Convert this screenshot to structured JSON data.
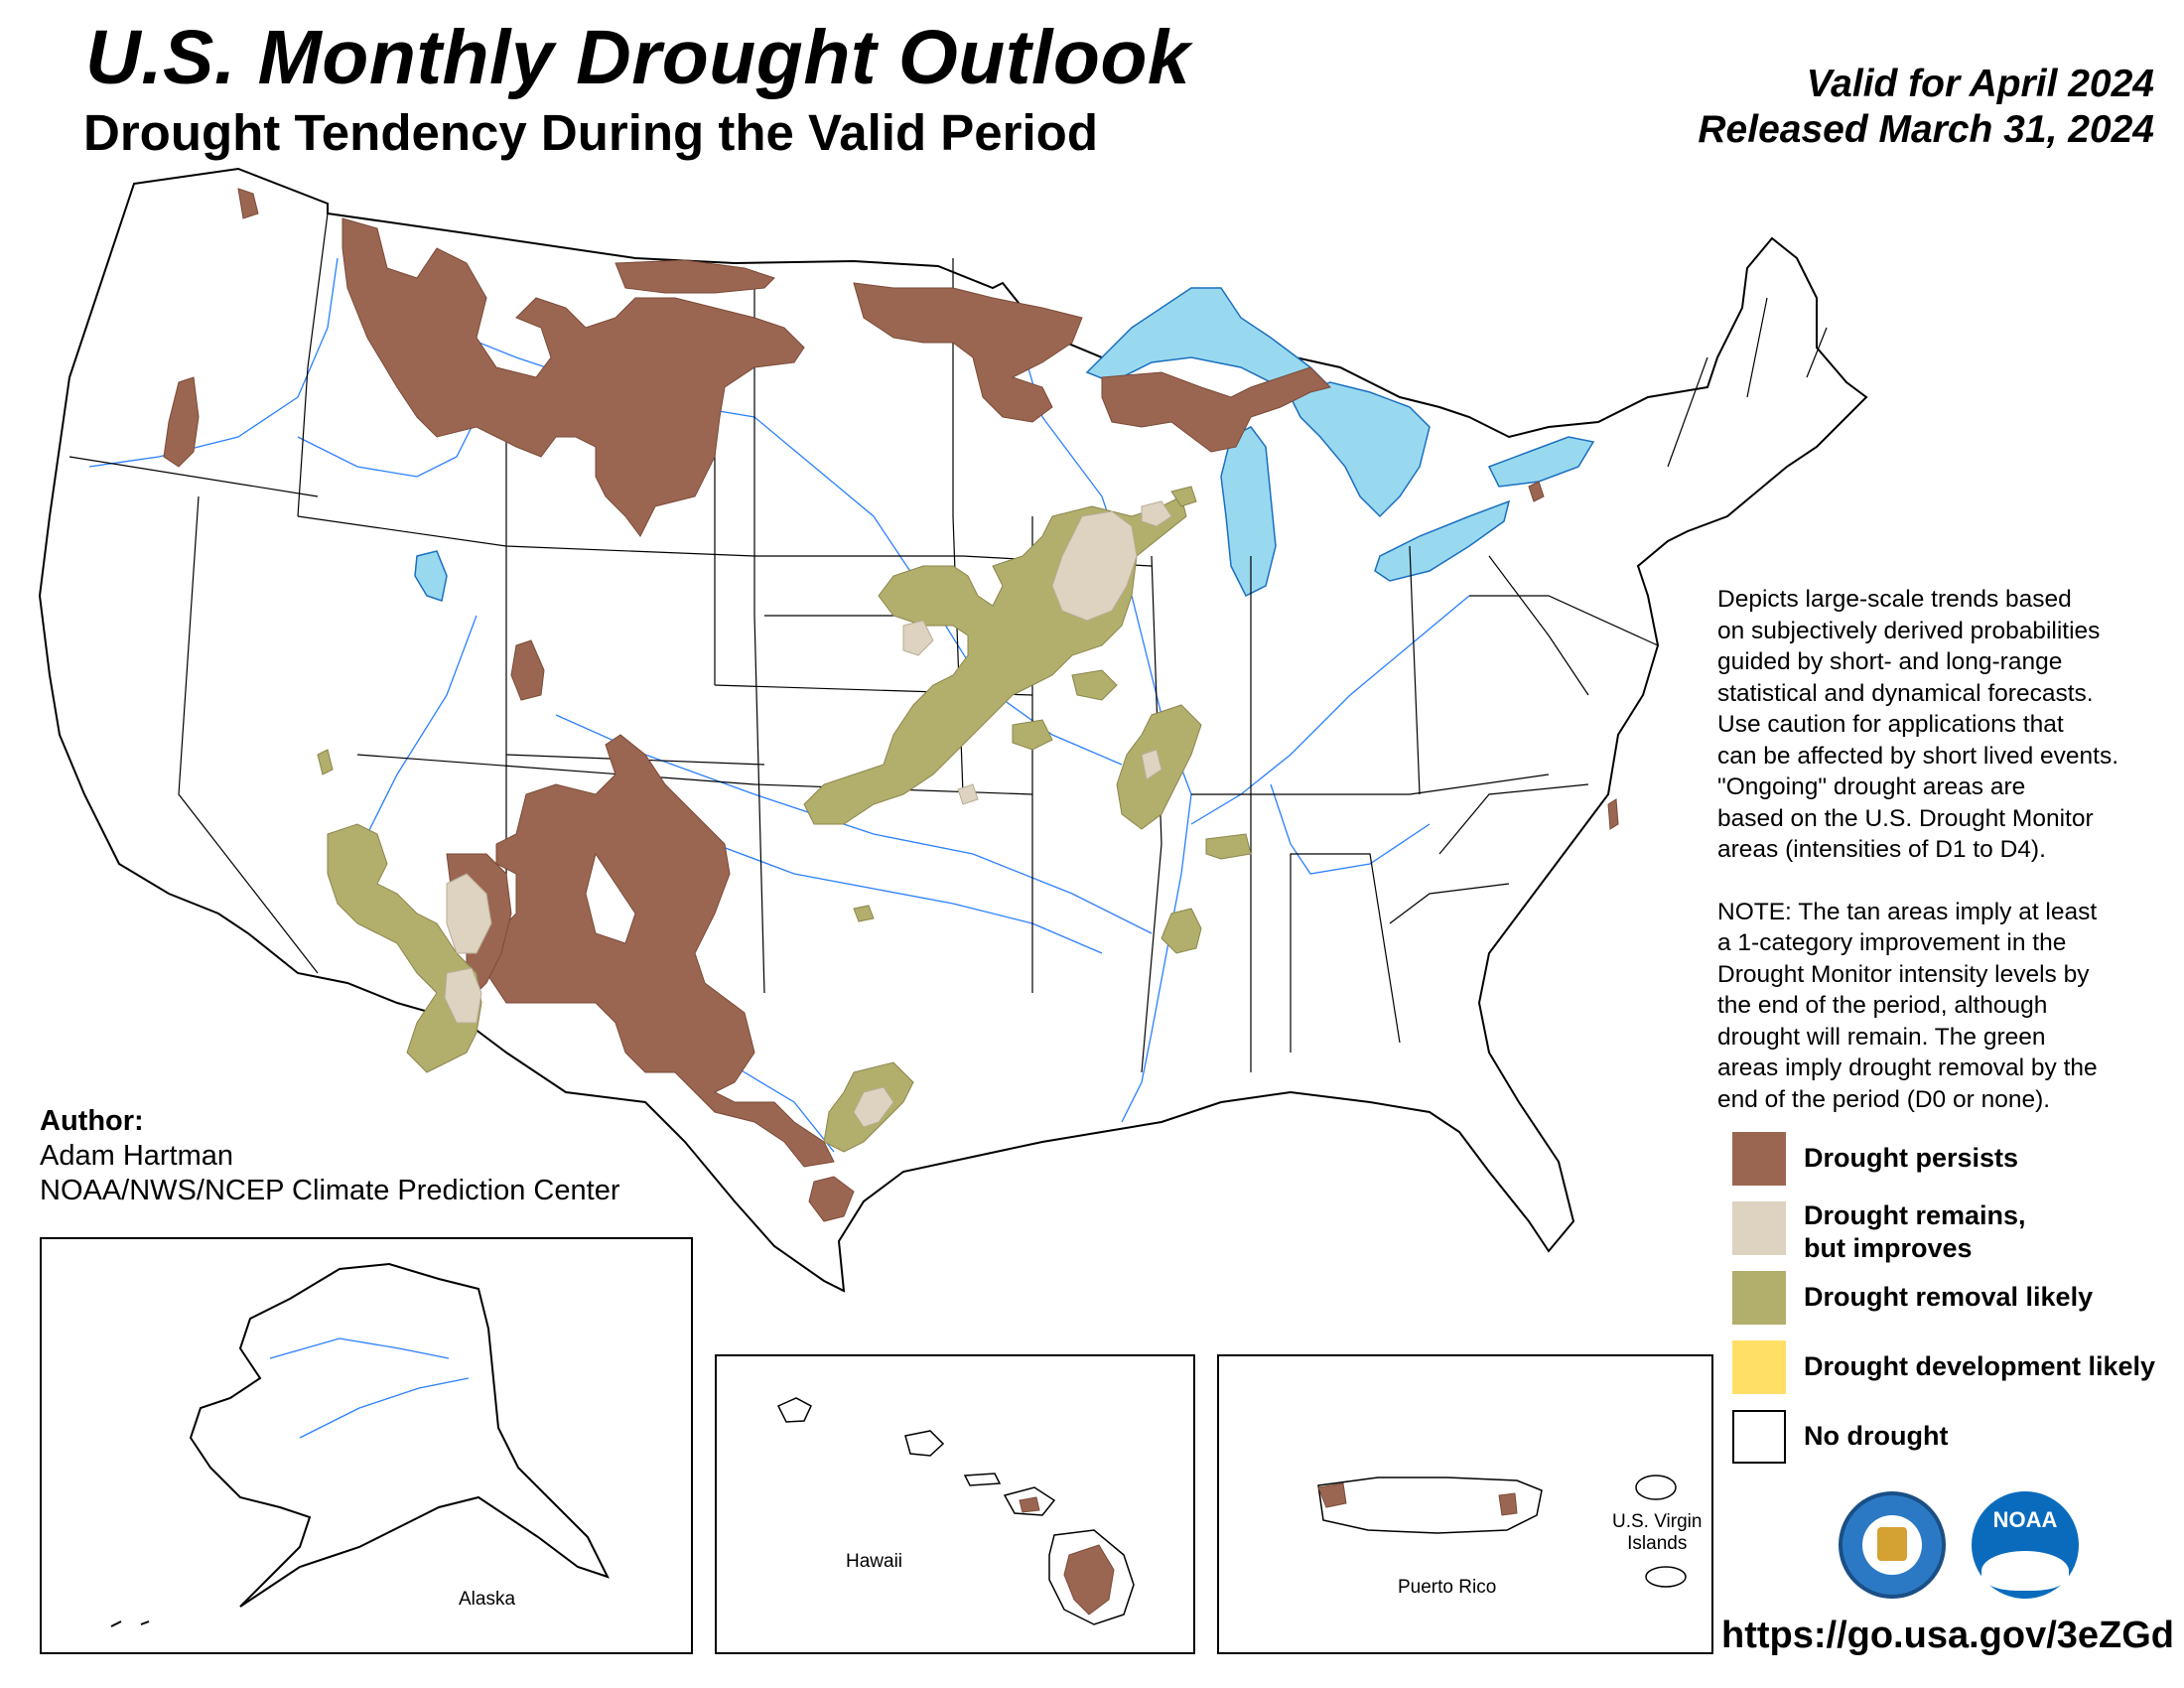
{
  "header": {
    "title": "U.S. Monthly Drought Outlook",
    "subtitle": "Drought Tendency During the Valid Period",
    "valid": "Valid for April 2024",
    "released": "Released March 31, 2024"
  },
  "description": {
    "para1": "Depicts large-scale trends based\non subjectively derived probabilities\nguided by short- and long-range\nstatistical and dynamical forecasts.\nUse caution for applications that\ncan be affected by short lived events.\n\"Ongoing\" drought areas are\nbased on the U.S. Drought Monitor\nareas (intensities of D1 to D4).",
    "para2": "NOTE: The tan areas imply at least\na 1-category improvement in the\nDrought Monitor intensity levels by\nthe end of the period, although\ndrought will remain. The green\nareas imply drought removal by the\nend of the period (D0 or none)."
  },
  "legend": [
    {
      "label": "Drought persists",
      "color": "#9b6651"
    },
    {
      "label": "Drought remains,\nbut improves",
      "color": "#ddd3c0"
    },
    {
      "label": "Drought removal likely",
      "color": "#b2ae6c"
    },
    {
      "label": "Drought development likely",
      "color": "#ffdf66"
    },
    {
      "label": "No drought",
      "color": "#ffffff"
    }
  ],
  "author": {
    "heading": "Author:",
    "name": "Adam Hartman",
    "org": "NOAA/NWS/NCEP Climate Prediction Center"
  },
  "insets": {
    "alaska": "Alaska",
    "hawaii": "Hawaii",
    "puerto_rico": "Puerto Rico",
    "usvi": "U.S. Virgin\nIslands"
  },
  "logos": {
    "commerce_icon": "department-of-commerce-seal-icon",
    "noaa_icon": "noaa-logo-icon",
    "noaa_text": "NOAA"
  },
  "url": "https://go.usa.gov/3eZGd",
  "colors": {
    "water": "#99d9f0",
    "river": "#2a7fff"
  }
}
